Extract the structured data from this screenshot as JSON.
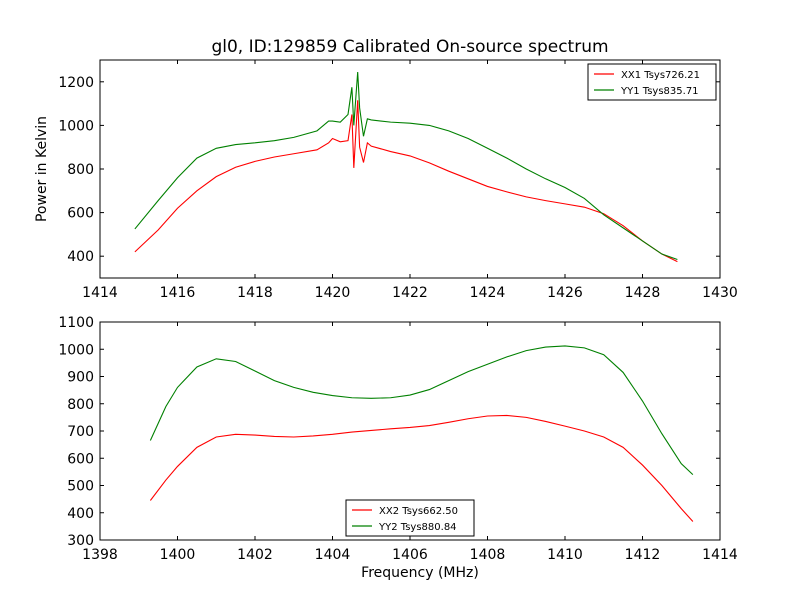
{
  "figure": {
    "title": "gl0, ID:129859 Calibrated On-source spectrum"
  },
  "chart_data": [
    {
      "type": "line",
      "ylabel": "Power in Kelvin",
      "xlabel": "",
      "xlim": [
        1414,
        1430
      ],
      "ylim": [
        300,
        1300
      ],
      "xticks": [
        "1414",
        "1416",
        "1418",
        "1420",
        "1422",
        "1424",
        "1426",
        "1428",
        "1430"
      ],
      "yticks": [
        "400",
        "600",
        "800",
        "1000",
        "1200"
      ],
      "legend": "top-right",
      "series": [
        {
          "name": "XX1 Tsys726.21",
          "color": "#ff0000",
          "x": [
            1414.9,
            1415.5,
            1416.0,
            1416.5,
            1417.0,
            1417.5,
            1418.0,
            1418.5,
            1419.0,
            1419.6,
            1419.9,
            1420.0,
            1420.2,
            1420.4,
            1420.5,
            1420.55,
            1420.65,
            1420.7,
            1420.8,
            1420.9,
            1421.0,
            1421.5,
            1422.0,
            1422.5,
            1423.0,
            1423.5,
            1424.0,
            1424.5,
            1425.0,
            1425.5,
            1426.0,
            1426.5,
            1427.0,
            1427.5,
            1428.0,
            1428.5,
            1428.9
          ],
          "y": [
            420,
            520,
            620,
            700,
            765,
            808,
            835,
            855,
            870,
            888,
            920,
            940,
            925,
            930,
            1050,
            805,
            1115,
            900,
            830,
            920,
            905,
            880,
            860,
            828,
            790,
            755,
            720,
            695,
            672,
            655,
            640,
            625,
            595,
            540,
            470,
            410,
            375
          ]
        },
        {
          "name": "YY1 Tsys835.71",
          "color": "#008000",
          "x": [
            1414.9,
            1415.5,
            1416.0,
            1416.5,
            1417.0,
            1417.5,
            1418.0,
            1418.5,
            1419.0,
            1419.6,
            1419.9,
            1420.0,
            1420.2,
            1420.4,
            1420.5,
            1420.55,
            1420.65,
            1420.7,
            1420.8,
            1420.9,
            1421.0,
            1421.5,
            1422.0,
            1422.5,
            1423.0,
            1423.5,
            1424.0,
            1424.5,
            1425.0,
            1425.5,
            1426.0,
            1426.5,
            1427.0,
            1427.5,
            1428.0,
            1428.5,
            1428.9
          ],
          "y": [
            525,
            655,
            760,
            850,
            895,
            912,
            920,
            930,
            945,
            975,
            1020,
            1020,
            1015,
            1050,
            1175,
            1000,
            1245,
            1080,
            950,
            1030,
            1025,
            1015,
            1010,
            1000,
            975,
            940,
            895,
            850,
            800,
            755,
            715,
            665,
            590,
            530,
            470,
            410,
            385
          ]
        }
      ]
    },
    {
      "type": "line",
      "ylabel": "",
      "xlabel": "Frequency (MHz)",
      "xlim": [
        1398,
        1414
      ],
      "ylim": [
        300,
        1100
      ],
      "xticks": [
        "1398",
        "1400",
        "1402",
        "1404",
        "1406",
        "1408",
        "1410",
        "1412",
        "1414"
      ],
      "yticks": [
        "300",
        "400",
        "500",
        "600",
        "700",
        "800",
        "900",
        "1000",
        "1100"
      ],
      "legend": "lower-center",
      "series": [
        {
          "name": "XX2 Tsys662.50",
          "color": "#ff0000",
          "x": [
            1399.3,
            1399.7,
            1400.0,
            1400.5,
            1401.0,
            1401.5,
            1402.0,
            1402.5,
            1403.0,
            1403.5,
            1404.0,
            1404.5,
            1405.0,
            1405.5,
            1406.0,
            1406.5,
            1407.0,
            1407.5,
            1408.0,
            1408.5,
            1409.0,
            1409.5,
            1410.0,
            1410.5,
            1411.0,
            1411.5,
            1412.0,
            1412.5,
            1413.0,
            1413.3
          ],
          "y": [
            445,
            520,
            570,
            640,
            678,
            688,
            685,
            680,
            678,
            682,
            688,
            696,
            702,
            708,
            713,
            720,
            732,
            745,
            755,
            757,
            750,
            735,
            718,
            700,
            678,
            640,
            575,
            500,
            415,
            368
          ]
        },
        {
          "name": "YY2 Tsys880.84",
          "color": "#008000",
          "x": [
            1399.3,
            1399.7,
            1400.0,
            1400.5,
            1401.0,
            1401.5,
            1402.0,
            1402.5,
            1403.0,
            1403.5,
            1404.0,
            1404.5,
            1405.0,
            1405.5,
            1406.0,
            1406.5,
            1407.0,
            1407.5,
            1408.0,
            1408.5,
            1409.0,
            1409.5,
            1410.0,
            1410.5,
            1411.0,
            1411.5,
            1412.0,
            1412.5,
            1413.0,
            1413.3
          ],
          "y": [
            665,
            790,
            860,
            935,
            965,
            955,
            920,
            885,
            860,
            842,
            830,
            822,
            820,
            822,
            832,
            852,
            885,
            918,
            945,
            972,
            995,
            1008,
            1012,
            1005,
            980,
            915,
            810,
            690,
            580,
            540
          ]
        }
      ]
    }
  ]
}
